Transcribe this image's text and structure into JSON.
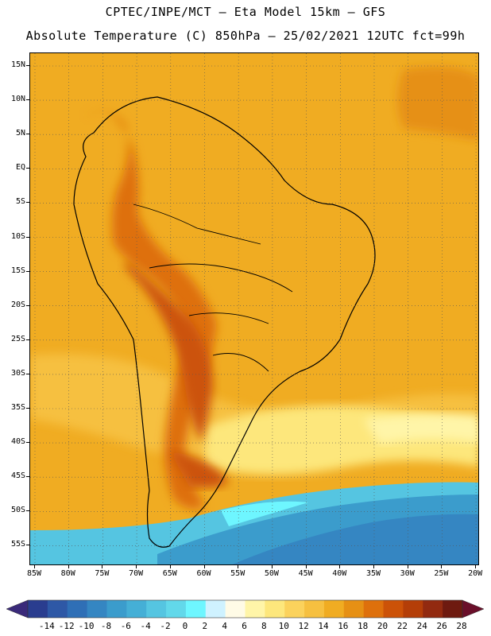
{
  "header": {
    "line1": "CPTEC/INPE/MCT –  Eta Model 15km – GFS",
    "line2": "Absolute Temperature (C) 850hPa – 25/02/2021 12UTC fct=99h"
  },
  "axes": {
    "lat_labels": [
      "15N",
      "10N",
      "5N",
      "EQ",
      "5S",
      "10S",
      "15S",
      "20S",
      "25S",
      "30S",
      "35S",
      "40S",
      "45S",
      "50S",
      "55S"
    ],
    "lon_labels": [
      "85W",
      "80W",
      "75W",
      "70W",
      "65W",
      "60W",
      "55W",
      "50W",
      "45W",
      "40W",
      "35W",
      "30W",
      "25W",
      "20W"
    ]
  },
  "legend": {
    "labels": [
      "-14",
      "-12",
      "-10",
      "-8",
      "-6",
      "-4",
      "-2",
      "0",
      "2",
      "4",
      "6",
      "8",
      "10",
      "12",
      "14",
      "16",
      "18",
      "20",
      "22",
      "24",
      "26",
      "28"
    ],
    "colors": [
      "#2a3d8f",
      "#2e58a6",
      "#2f6fb6",
      "#3586c2",
      "#3b9ccc",
      "#45afd6",
      "#55c5e1",
      "#62d8ea",
      "#6ef6ff",
      "#cff2ff",
      "#fffbe6",
      "#fff5a8",
      "#fde77c",
      "#fbd25c",
      "#f6c040",
      "#f0ac22",
      "#e69014",
      "#de700c",
      "#cc5208",
      "#b43e08",
      "#922a10",
      "#6e1a10"
    ],
    "arrow_low_color": "#3a2a7a",
    "arrow_high_color": "#6a0f2a"
  }
}
